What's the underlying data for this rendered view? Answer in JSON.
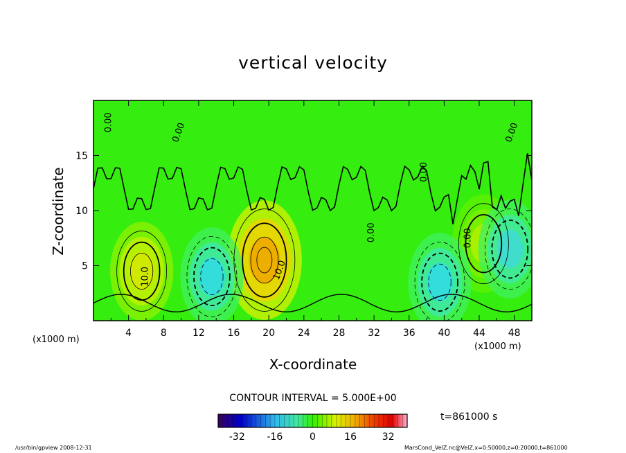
{
  "chart_data": {
    "type": "heatmap",
    "title": "vertical velocity",
    "xlabel": "X-coordinate",
    "ylabel": "Z-coordinate",
    "x_unit": "(x1000 m)",
    "xlim": [
      0,
      50
    ],
    "ylim": [
      0,
      20
    ],
    "x_ticks": [
      4,
      8,
      12,
      16,
      20,
      24,
      28,
      32,
      36,
      40,
      44,
      48
    ],
    "y_ticks": [
      5,
      10,
      15
    ],
    "contour_interval": "CONTOUR INTERVAL = 5.000E+00",
    "contour_labels": [
      "0.00",
      "0.00",
      "0.00",
      "0.00",
      "0.00",
      "0.00",
      "10.0",
      "10.0"
    ],
    "colorbar": {
      "min": -40,
      "max": 40,
      "ticks": [
        -32,
        -16,
        0,
        16,
        32
      ]
    },
    "time_label": "t=861000 s",
    "features": [
      {
        "name": "updraft",
        "x": 5.5,
        "z": 4.5,
        "peak": 18
      },
      {
        "name": "updraft",
        "x": 19.5,
        "z": 5.5,
        "peak": 32
      },
      {
        "name": "updraft",
        "x": 44.5,
        "z": 7,
        "peak": 10
      },
      {
        "name": "downdraft",
        "x": 13.5,
        "z": 4,
        "peak": -16
      },
      {
        "name": "downdraft",
        "x": 39.5,
        "z": 3.5,
        "peak": -16
      },
      {
        "name": "downdraft",
        "x": 47.5,
        "z": 6.5,
        "peak": -14
      }
    ]
  },
  "footer": {
    "left": "/usr/bin/gpview   2008-12-31",
    "right": "MarsCond_VelZ.nc@VelZ,x=0:50000,z=0:20000,t=861000"
  }
}
